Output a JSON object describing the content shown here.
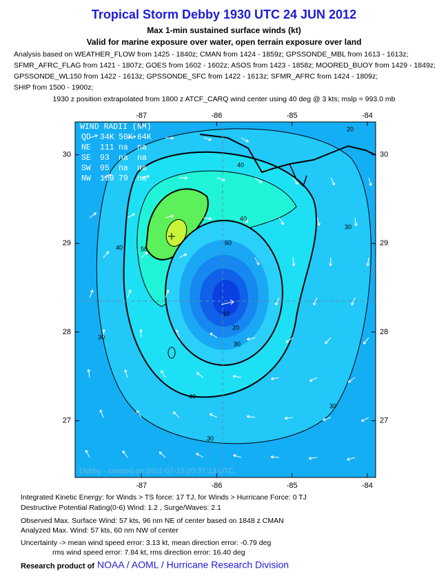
{
  "header": {
    "title": "Tropical Storm Debby 1930 UTC 24 JUN 2012",
    "subtitle": "Max 1-min sustained surface winds (kt)",
    "subtitle2": "Valid for marine exposure over water, open terrain exposure over land"
  },
  "analysis": [
    "Analysis based on WEATHER_FLOW from 1425 - 1840z; CMAN from 1424 - 1859z; GPSSONDE_MBL from 1613 - 1613z;",
    "SFMR_AFRC_FLAG from 1421 - 1807z; GOES from 1602 - 1602z; ASOS from 1423 - 1858z; MOORED_BUOY from 1429 - 1849z;",
    "GPSSONDE_WL150 from 1422 - 1613z; GPSSONDE_SFC from 1422 - 1613z; SFMR_AFRC from 1424 - 1809z;",
    "SHIP from 1500 - 1900z;"
  ],
  "position_note": "1930 z position extrapolated from 1800 z ATCF_CARQ wind center using 40 deg @ 3 kts; mslp = 993.0 mb",
  "map": {
    "lon_range": [
      -87.88,
      -83.89
    ],
    "lat_range": [
      26.36,
      30.37
    ],
    "lon_ticks": [
      -87,
      -86,
      -85,
      -84
    ],
    "lat_ticks": [
      27,
      28,
      29,
      30
    ],
    "wind_radii": {
      "title": "WIND RADII (NM)",
      "rows": [
        [
          "QD",
          "34K",
          "50K",
          "64K"
        ],
        [
          "NE",
          "111",
          "na",
          "na"
        ],
        [
          "SE",
          "93",
          "na",
          "na"
        ],
        [
          "SW",
          "95",
          "na",
          "na"
        ],
        [
          "NW",
          "109",
          "79",
          "na"
        ]
      ]
    },
    "contour_labels": [
      "20",
      "40",
      "40",
      "60",
      "50",
      "40",
      "30",
      "10",
      "20",
      "30",
      "30",
      "40",
      "30",
      "30"
    ],
    "credit": "Debby - created on 2012-07-15 20:37:13 UTC"
  },
  "footer": {
    "lines": [
      "Integrated Kinetic Energy: for Winds > TS force: 17 TJ, for Winds > Hurricane Force: 0 TJ",
      "Destructive Potential Rating(0-6)  Wind: 1.2 , Surge/Waves: 2.1",
      "Observed Max. Surface Wind: 57 kts, 96 nm NE of center based on 1848 z CMAN",
      "Analyzed Max. Wind: 57 kts, 60 nm  NW of center",
      "Uncertainty -> mean wind speed error: 3.13 kt, mean direction error:  -0.79 deg",
      "rms wind speed error: 7.84 kt, rms direction error: 16.40 deg"
    ],
    "research_label": "Research product of",
    "org": "NOAA / AOML / Hurricane Research Division"
  }
}
